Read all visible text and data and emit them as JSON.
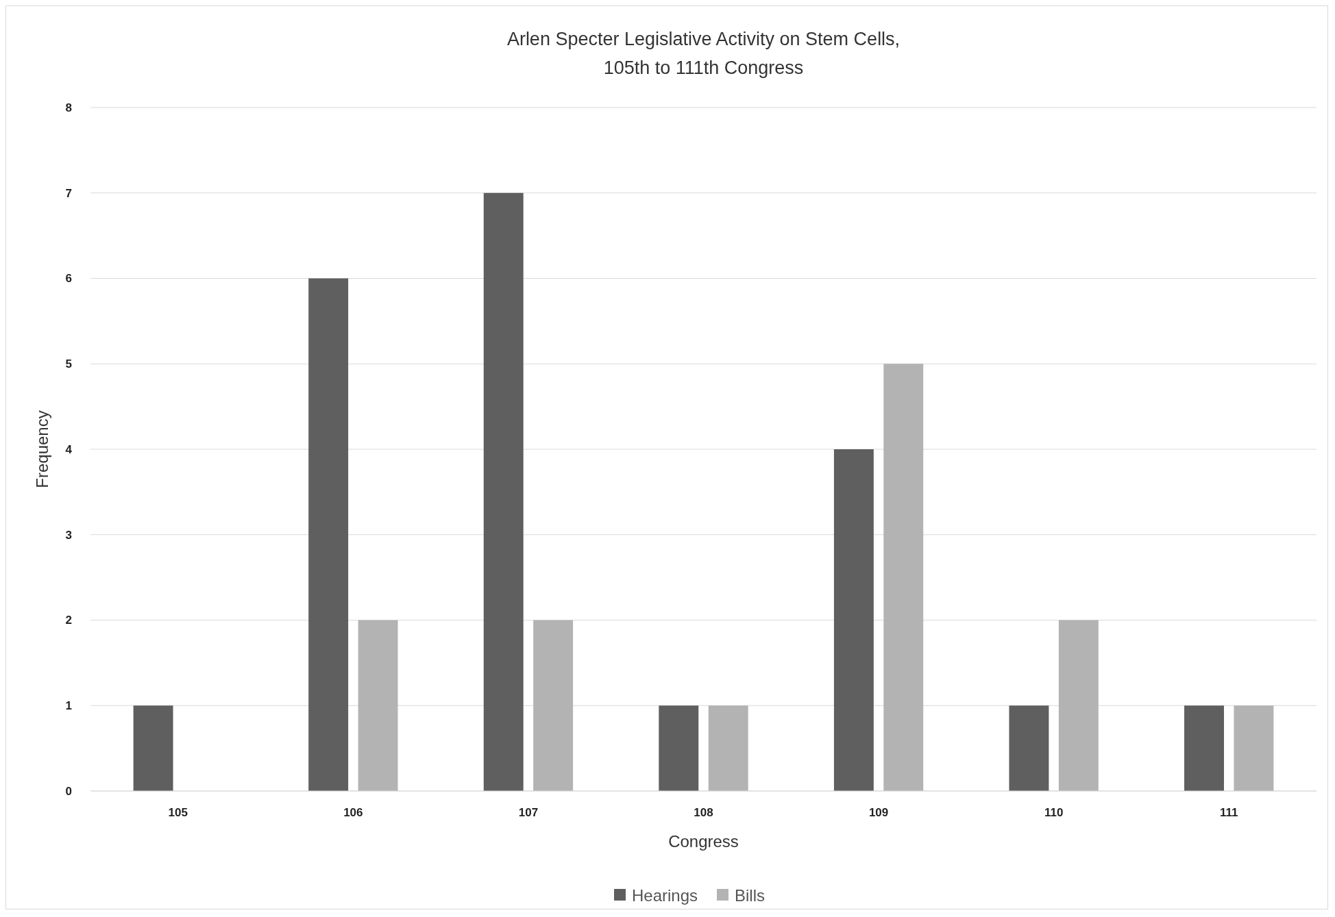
{
  "chart_data": {
    "type": "bar",
    "title": "Arlen Specter Legislative Activity on Stem Cells,\n105th to 111th Congress",
    "xlabel": "Congress",
    "ylabel": "Frequency",
    "categories": [
      "105",
      "106",
      "107",
      "108",
      "109",
      "110",
      "111"
    ],
    "series": [
      {
        "name": "Hearings",
        "color": "#5f5f5f",
        "values": [
          1,
          6,
          7,
          1,
          4,
          1,
          1
        ]
      },
      {
        "name": "Bills",
        "color": "#b3b3b3",
        "values": [
          0,
          2,
          2,
          1,
          5,
          2,
          1
        ]
      }
    ],
    "ylim": [
      0,
      8
    ],
    "yticks": [
      0,
      1,
      2,
      3,
      4,
      5,
      6,
      7,
      8
    ],
    "grid": "y",
    "legend": "bottom"
  }
}
